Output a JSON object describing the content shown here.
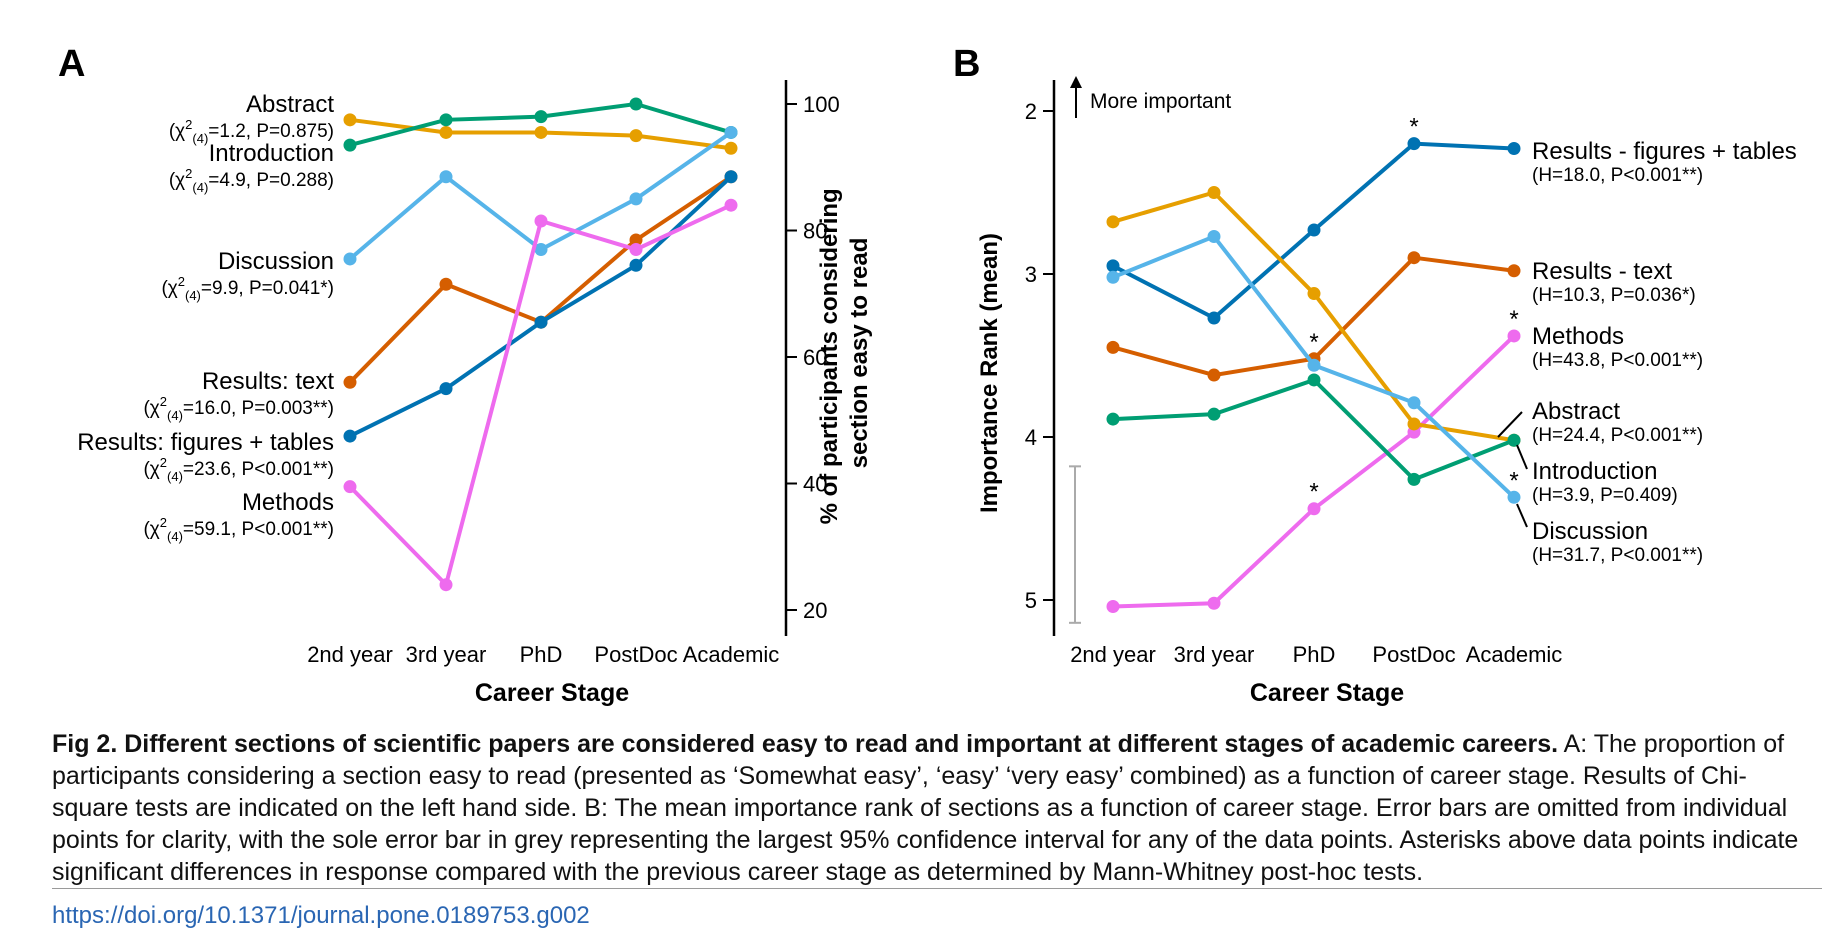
{
  "chart_data": [
    {
      "panel": "A",
      "type": "line",
      "xlabel": "Career Stage",
      "ylabel": "% of participants considering section easy to read",
      "ylabel_lines": [
        "% of participants considering",
        "section easy to read"
      ],
      "categories": [
        "2nd year",
        "3rd year",
        "PhD",
        "PostDoc",
        "Academic"
      ],
      "ylim": [
        20,
        100
      ],
      "yticks": [
        20,
        40,
        60,
        80,
        100
      ],
      "series": [
        {
          "name": "Abstract",
          "stat": "=1.2, P=0.875)",
          "color": "#E69F00",
          "values": [
            97.5,
            95.5,
            95.5,
            95,
            93
          ]
        },
        {
          "name": "Introduction",
          "stat": "=4.9, P=0.288)",
          "color": "#009E73",
          "values": [
            93.5,
            97.5,
            98,
            100,
            95.5
          ]
        },
        {
          "name": "Discussion",
          "stat": "=9.9, P=0.041*)",
          "color": "#56B4E9",
          "values": [
            75.5,
            88.5,
            77,
            85,
            95.5
          ]
        },
        {
          "name": "Results: text",
          "stat": "=16.0, P=0.003**)",
          "color": "#D55E00",
          "values": [
            56,
            71.5,
            65.5,
            78.5,
            88.5
          ]
        },
        {
          "name": "Results: figures + tables",
          "stat": "=23.6, P<0.001**)",
          "color": "#0072B2",
          "values": [
            47.5,
            55,
            65.5,
            74.5,
            88.5
          ]
        },
        {
          "name": "Methods",
          "stat": "=59.1, P<0.001**)",
          "color": "#EE6BEE",
          "values": [
            39.5,
            24,
            81.5,
            77,
            84
          ]
        }
      ]
    },
    {
      "panel": "B",
      "type": "line",
      "xlabel": "Career Stage",
      "ylabel": "Importance Rank (mean)",
      "categories": [
        "2nd year",
        "3rd year",
        "PhD",
        "PostDoc",
        "Academic"
      ],
      "ylim": [
        5.2,
        1.8
      ],
      "yticks": [
        2,
        3,
        4,
        5
      ],
      "annotation": "More important",
      "errorbar": [
        4.18,
        5.14
      ],
      "series": [
        {
          "name": "Results - figures + tables",
          "stat": "(H=18.0, P<0.001**)",
          "color": "#0072B2",
          "values": [
            2.95,
            3.27,
            2.73,
            2.2,
            2.23
          ],
          "significant": [
            false,
            false,
            false,
            true,
            false
          ]
        },
        {
          "name": "Results - text",
          "stat": "(H=10.3, P=0.036*)",
          "color": "#D55E00",
          "values": [
            3.45,
            3.62,
            3.52,
            2.9,
            2.98
          ],
          "significant": [
            false,
            false,
            true,
            false,
            false
          ]
        },
        {
          "name": "Methods",
          "stat": "(H=43.8, P<0.001**)",
          "color": "#EE6BEE",
          "values": [
            5.04,
            5.02,
            4.44,
            3.97,
            3.38
          ],
          "significant": [
            false,
            false,
            true,
            false,
            true
          ]
        },
        {
          "name": "Abstract",
          "stat": "(H=24.4, P<0.001**)",
          "color": "#E69F00",
          "values": [
            2.68,
            2.5,
            3.12,
            3.92,
            4.02
          ],
          "significant": [
            false,
            false,
            false,
            false,
            false
          ]
        },
        {
          "name": "Introduction",
          "stat": "(H=3.9, P=0.409)",
          "color": "#009E73",
          "values": [
            3.89,
            3.86,
            3.65,
            4.26,
            4.02
          ],
          "significant": [
            false,
            false,
            false,
            false,
            false
          ]
        },
        {
          "name": "Discussion",
          "stat": "(H=31.7, P<0.001**)",
          "color": "#56B4E9",
          "values": [
            3.02,
            2.77,
            3.56,
            3.79,
            4.37
          ],
          "significant": [
            false,
            false,
            false,
            false,
            true
          ]
        }
      ]
    }
  ],
  "panel_labels": {
    "a": "A",
    "b": "B"
  },
  "chi_prefix": "(χ",
  "chi_sup": "2",
  "chi_sub": "(4)",
  "sig_marker": "*",
  "caption": {
    "bold": "Fig 2. Different sections of scientific papers are considered easy to read and important at different stages of academic careers.",
    "text": " A: The proportion of participants considering a section easy to read (presented as ‘Somewhat easy’, ‘easy’ ‘very easy’ combined) as a function of career stage. Results of Chi-square tests are indicated on the left hand side. B: The mean importance rank of sections as a function of career stage. Error bars are omitted from individual points for clarity, with the sole error bar in grey representing the largest 95% confidence interval for any of the data points. Asterisks above data points indicate significant differences in response compared with the previous career stage as determined by Mann-Whitney post-hoc tests."
  },
  "doi": "https://doi.org/10.1371/journal.pone.0189753.g002"
}
